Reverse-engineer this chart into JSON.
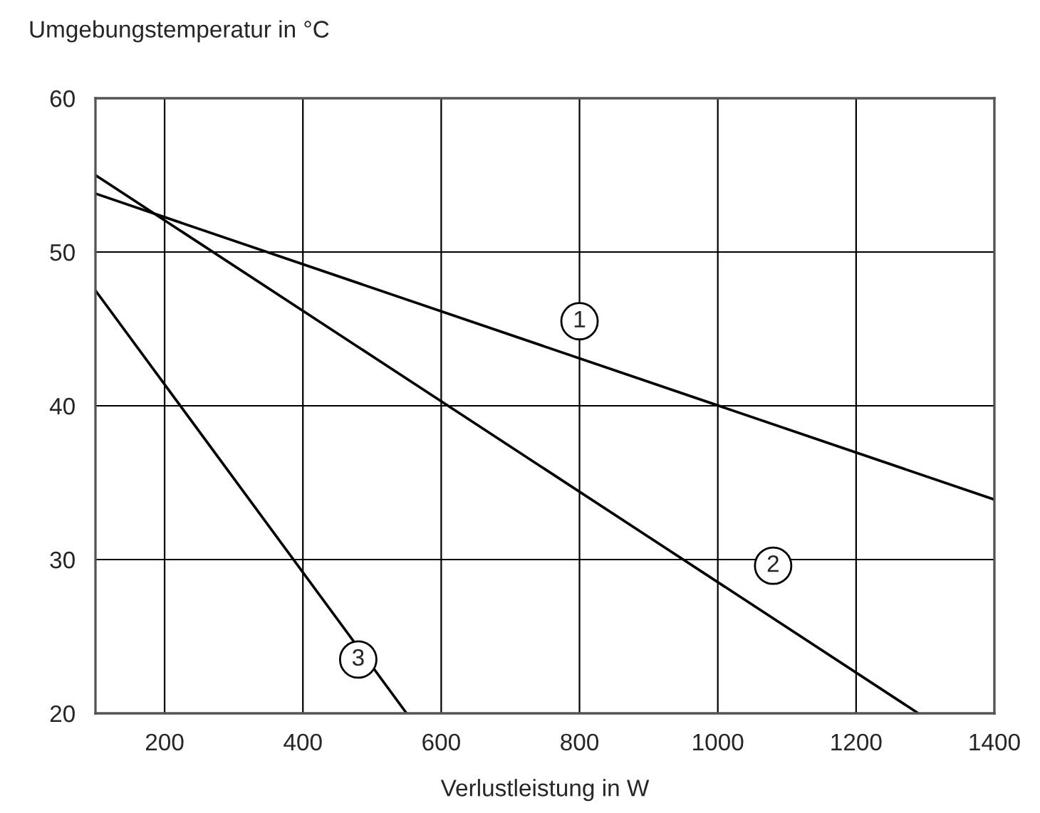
{
  "chart_data": {
    "type": "line",
    "xlabel": "Verlustleistung in W",
    "ylabel": "Umgebungstemperatur in °C",
    "series": [
      {
        "color": "#000000",
        "x": [
          100,
          1400
        ],
        "values": [
          53.8,
          33.9
        ]
      },
      {
        "color": "#000000",
        "x": [
          100,
          1290
        ],
        "values": [
          55.0,
          20
        ]
      },
      {
        "color": "#000000",
        "x": [
          100,
          550
        ],
        "values": [
          47.5,
          20
        ]
      }
    ],
    "annotations": [
      {
        "text": "1",
        "x": 800,
        "y": 45.5
      },
      {
        "text": "2",
        "x": 1080,
        "y": 29.6
      },
      {
        "text": "3",
        "x": 480,
        "y": 23.5
      }
    ],
    "xlim": [
      100,
      1400
    ],
    "xticks": [
      200,
      400,
      600,
      800,
      1000,
      1200,
      1400
    ],
    "ylim": [
      20,
      60
    ],
    "yticks": [
      20,
      30,
      40,
      50,
      60
    ],
    "grid": true,
    "legend": false,
    "marker": "none",
    "line_style": "solid"
  }
}
